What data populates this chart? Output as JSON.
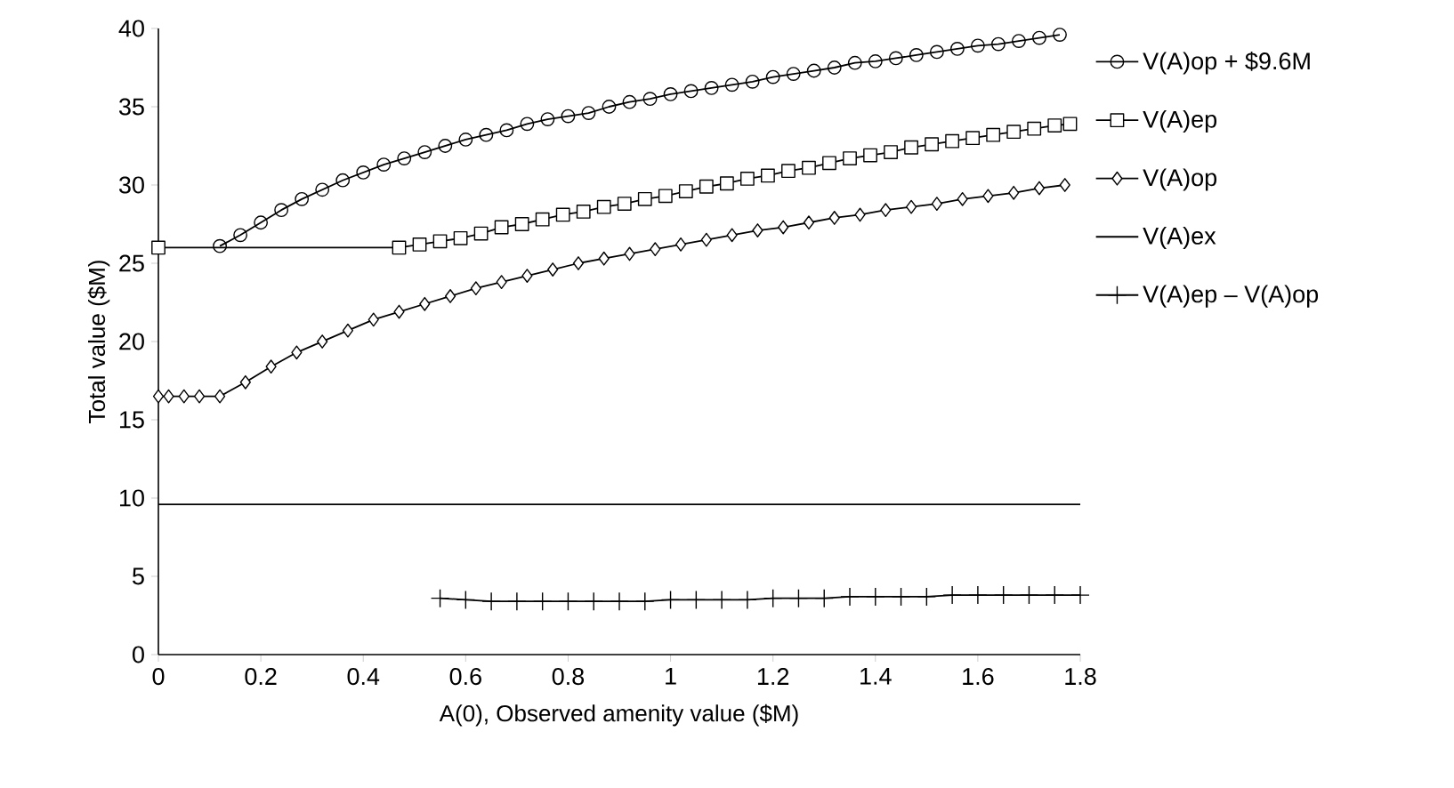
{
  "chart_data": {
    "type": "line",
    "xlabel": "A(0), Observed amenity value ($M)",
    "ylabel": "Total value ($M)",
    "xlim": [
      0,
      1.8
    ],
    "ylim": [
      0,
      40
    ],
    "xticks": [
      0,
      0.2,
      0.4,
      0.6,
      0.8,
      1,
      1.2,
      1.4,
      1.6,
      1.8
    ],
    "yticks": [
      0,
      5,
      10,
      15,
      20,
      25,
      30,
      35,
      40
    ],
    "legend": "right",
    "line_style": "solid",
    "series": [
      {
        "name": "V(A)op + $9.6M",
        "color": "#000000",
        "marker": "circle",
        "x": [
          0.12,
          0.16,
          0.2,
          0.24,
          0.28,
          0.32,
          0.36,
          0.4,
          0.44,
          0.48,
          0.52,
          0.56,
          0.6,
          0.64,
          0.68,
          0.72,
          0.76,
          0.8,
          0.84,
          0.88,
          0.92,
          0.96,
          1.0,
          1.04,
          1.08,
          1.12,
          1.16,
          1.2,
          1.24,
          1.28,
          1.32,
          1.36,
          1.4,
          1.44,
          1.48,
          1.52,
          1.56,
          1.6,
          1.64,
          1.68,
          1.72,
          1.76
        ],
        "values": [
          26.1,
          26.8,
          27.6,
          28.4,
          29.1,
          29.7,
          30.3,
          30.8,
          31.3,
          31.7,
          32.1,
          32.5,
          32.9,
          33.2,
          33.5,
          33.9,
          34.2,
          34.4,
          34.6,
          35.0,
          35.3,
          35.5,
          35.8,
          36.0,
          36.2,
          36.4,
          36.6,
          36.9,
          37.1,
          37.3,
          37.5,
          37.8,
          37.9,
          38.1,
          38.3,
          38.5,
          38.7,
          38.9,
          39.0,
          39.2,
          39.4,
          39.6
        ]
      },
      {
        "name": "V(A)ep",
        "color": "#000000",
        "marker": "square",
        "x": [
          0,
          0.47,
          0.51,
          0.55,
          0.59,
          0.63,
          0.67,
          0.71,
          0.75,
          0.79,
          0.83,
          0.87,
          0.91,
          0.95,
          0.99,
          1.03,
          1.07,
          1.11,
          1.15,
          1.19,
          1.23,
          1.27,
          1.31,
          1.35,
          1.39,
          1.43,
          1.47,
          1.51,
          1.55,
          1.59,
          1.63,
          1.67,
          1.71,
          1.75,
          1.78
        ],
        "values": [
          26,
          26,
          26.2,
          26.4,
          26.6,
          26.9,
          27.3,
          27.5,
          27.8,
          28.1,
          28.3,
          28.6,
          28.8,
          29.1,
          29.3,
          29.6,
          29.9,
          30.1,
          30.4,
          30.6,
          30.9,
          31.1,
          31.4,
          31.7,
          31.9,
          32.1,
          32.4,
          32.6,
          32.8,
          33.0,
          33.2,
          33.4,
          33.6,
          33.8,
          33.9
        ]
      },
      {
        "name": "V(A)op",
        "color": "#000000",
        "marker": "diamond",
        "x": [
          0,
          0.02,
          0.05,
          0.08,
          0.12,
          0.17,
          0.22,
          0.27,
          0.32,
          0.37,
          0.42,
          0.47,
          0.52,
          0.57,
          0.62,
          0.67,
          0.72,
          0.77,
          0.82,
          0.87,
          0.92,
          0.97,
          1.02,
          1.07,
          1.12,
          1.17,
          1.22,
          1.27,
          1.32,
          1.37,
          1.42,
          1.47,
          1.52,
          1.57,
          1.62,
          1.67,
          1.72,
          1.77
        ],
        "values": [
          16.5,
          16.5,
          16.5,
          16.5,
          16.5,
          17.4,
          18.4,
          19.3,
          20.0,
          20.7,
          21.4,
          21.9,
          22.4,
          22.9,
          23.4,
          23.8,
          24.2,
          24.6,
          25.0,
          25.3,
          25.6,
          25.9,
          26.2,
          26.5,
          26.8,
          27.1,
          27.3,
          27.6,
          27.9,
          28.1,
          28.4,
          28.6,
          28.8,
          29.1,
          29.3,
          29.5,
          29.8,
          30.0
        ]
      },
      {
        "name": "V(A)ex",
        "color": "#000000",
        "marker": "none",
        "x": [
          0,
          1.8
        ],
        "values": [
          9.6,
          9.6
        ]
      },
      {
        "name": "V(A)ep – V(A)op",
        "color": "#000000",
        "marker": "cross",
        "x": [
          0.55,
          0.6,
          0.65,
          0.7,
          0.75,
          0.8,
          0.85,
          0.9,
          0.95,
          1.0,
          1.05,
          1.1,
          1.15,
          1.2,
          1.25,
          1.3,
          1.35,
          1.4,
          1.45,
          1.5,
          1.55,
          1.6,
          1.65,
          1.7,
          1.75,
          1.8
        ],
        "values": [
          3.6,
          3.5,
          3.4,
          3.4,
          3.4,
          3.4,
          3.4,
          3.4,
          3.4,
          3.5,
          3.5,
          3.5,
          3.5,
          3.6,
          3.6,
          3.6,
          3.7,
          3.7,
          3.7,
          3.7,
          3.8,
          3.8,
          3.8,
          3.8,
          3.8,
          3.8
        ]
      }
    ]
  }
}
